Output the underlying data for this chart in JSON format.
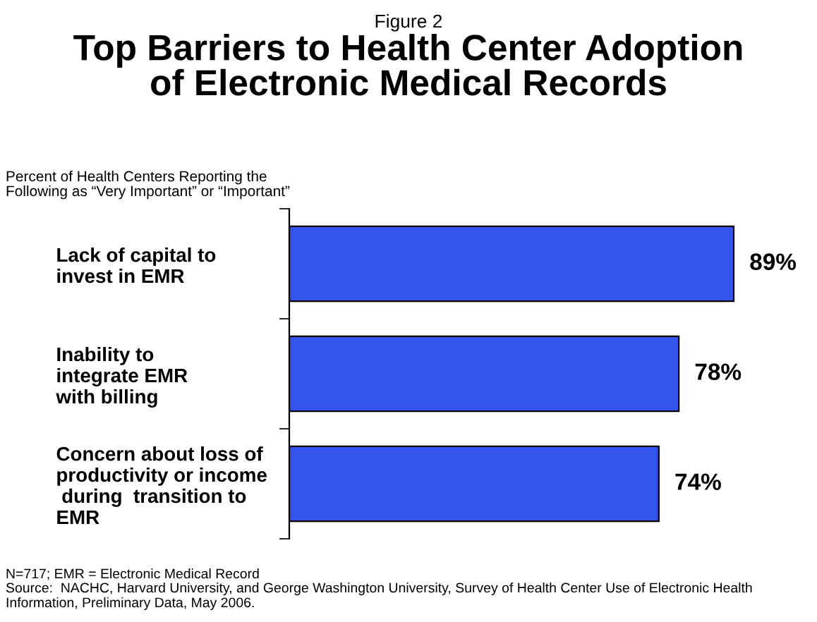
{
  "chart_data": {
    "type": "bar",
    "orientation": "horizontal",
    "title": "Top Barriers to Health Center Adoption\nof Electronic Medical Records",
    "subtitle": "Figure 2",
    "ylabel": "Percent of Health Centers Reporting the\nFollowing as “Very Important” or “Important”",
    "categories": [
      "Lack of capital to\ninvest in EMR",
      "Inability to\nintegrate EMR\nwith billing",
      "Concern about loss of\nproductivity or income\n during  transition to\nEMR"
    ],
    "values": [
      89,
      78,
      74
    ],
    "color": "#3355ee",
    "data_labels": true,
    "value_labels": [
      "89%",
      "78%",
      "74%"
    ],
    "grid": false,
    "legend": false,
    "annotations": [
      "N=717; EMR = Electronic Medical Record",
      "Source:  NACHC, Harvard University, and George Washington University, Survey of Health Center Use of Electronic Health Information, Preliminary Data, May 2006."
    ]
  }
}
